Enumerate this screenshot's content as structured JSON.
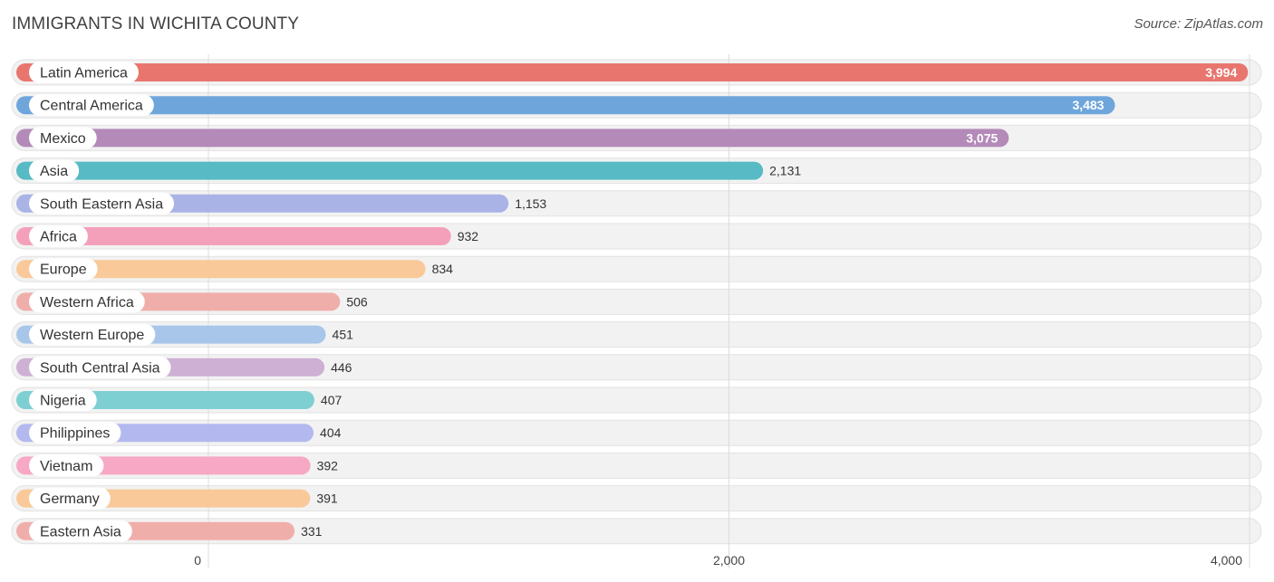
{
  "header": {
    "title": "IMMIGRANTS IN WICHITA COUNTY",
    "source": "Source: ZipAtlas.com"
  },
  "chart_data": {
    "type": "bar",
    "orientation": "horizontal",
    "title": "IMMIGRANTS IN WICHITA COUNTY",
    "categories": [
      "Latin America",
      "Central America",
      "Mexico",
      "Asia",
      "South Eastern Asia",
      "Africa",
      "Europe",
      "Western Africa",
      "Western Europe",
      "South Central Asia",
      "Nigeria",
      "Philippines",
      "Vietnam",
      "Germany",
      "Eastern Asia"
    ],
    "values": [
      3994,
      3483,
      3075,
      2131,
      1153,
      932,
      834,
      506,
      451,
      446,
      407,
      404,
      392,
      391,
      331
    ],
    "value_labels": [
      "3,994",
      "3,483",
      "3,075",
      "2,131",
      "1,153",
      "932",
      "834",
      "506",
      "451",
      "446",
      "407",
      "404",
      "392",
      "391",
      "331"
    ],
    "colors": [
      "#e8766f",
      "#6ea6dc",
      "#b48ab9",
      "#58bac5",
      "#a9b3e6",
      "#f4a0bb",
      "#f9c999",
      "#f0aeab",
      "#a8c6ea",
      "#cdb0d3",
      "#7ecfd2",
      "#b3b9ee",
      "#f6a8c4",
      "#f9c999",
      "#f0aeab"
    ],
    "xlim": [
      0,
      4000
    ],
    "x_ticks": [
      0,
      2000,
      4000
    ],
    "x_tick_labels": [
      "0",
      "2,000",
      "4,000"
    ],
    "grid": true
  }
}
